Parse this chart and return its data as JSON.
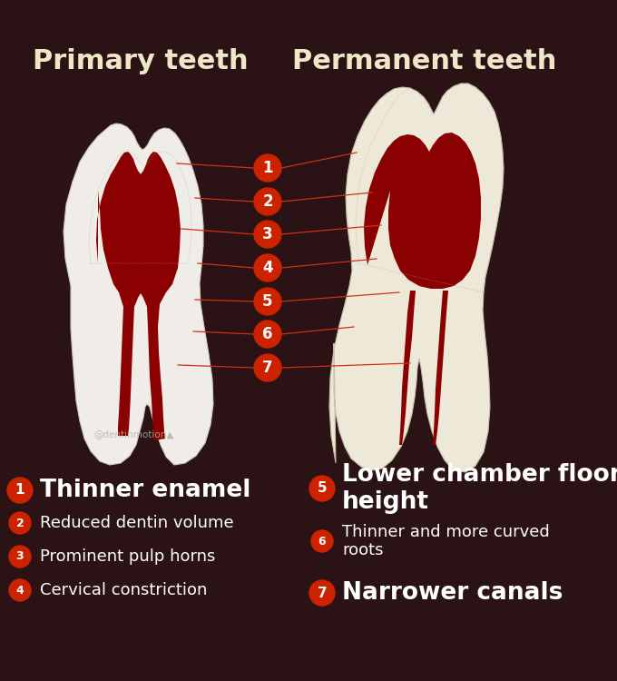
{
  "bg_color": "#2a1215",
  "title_left": "Primary teeth",
  "title_right": "Permanent teeth",
  "title_color": "#f0e6c8",
  "title_fontsize": 22,
  "watermark": "@dentinmotion▲",
  "circle_color": "#cc2200",
  "circle_text_color": "#ffffff",
  "line_color": "#cc3311",
  "labels": [
    {
      "num": "1",
      "text": "Thinner enamel",
      "big": true
    },
    {
      "num": "2",
      "text": "Reduced dentin volume",
      "big": false
    },
    {
      "num": "3",
      "text": "Prominent pulp horns",
      "big": false
    },
    {
      "num": "4",
      "text": "Cervical constriction",
      "big": false
    },
    {
      "num": "5",
      "text": "Lower chamber floor\nheight",
      "big": true
    },
    {
      "num": "6",
      "text": "Thinner and more curved\nroots",
      "big": false
    },
    {
      "num": "7",
      "text": "Narrower canals",
      "big": true
    }
  ],
  "label_text_color": "#ffffff",
  "label_big_fontsize": 19,
  "label_small_fontsize": 13,
  "tooth_outer_color": "#f0ece8",
  "tooth_outer_color2": "#ede8d8",
  "tooth_pulp_color": "#8b0000",
  "tooth_edge_color": "#b0a090"
}
